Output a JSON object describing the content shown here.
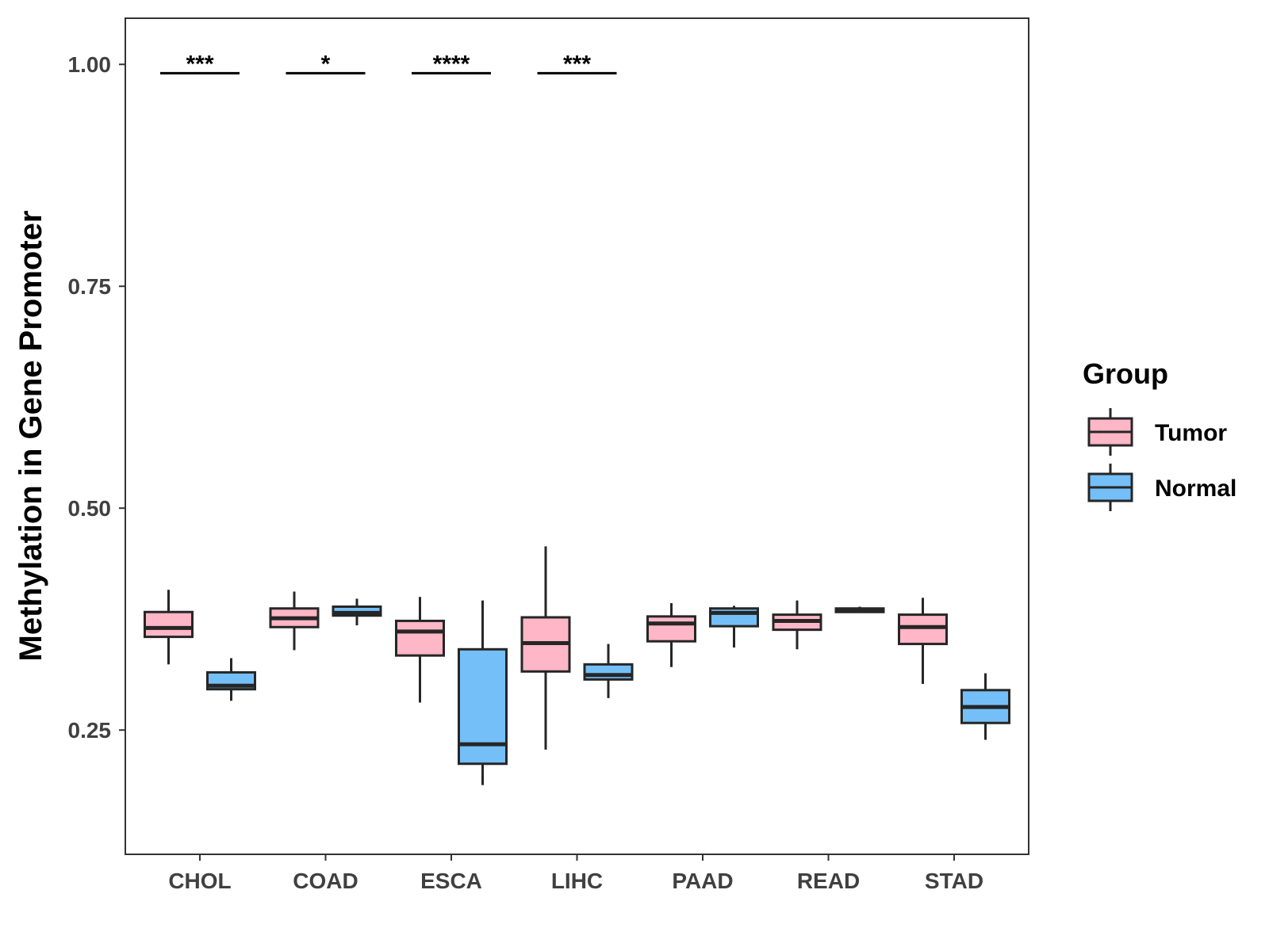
{
  "chart_data": {
    "type": "boxplot",
    "title": "",
    "xlabel": "",
    "ylabel": "Methylation in Gene Promoter",
    "ylim": [
      0.11,
      1.052
    ],
    "yticks": [
      0.25,
      0.5,
      0.75,
      1.0
    ],
    "ytick_labels": [
      "0.25",
      "0.50",
      "0.75",
      "1.00"
    ],
    "categories": [
      "CHOL",
      "COAD",
      "ESCA",
      "LIHC",
      "PAAD",
      "READ",
      "STAD"
    ],
    "legend": {
      "title": "Group",
      "position": "right",
      "entries": [
        {
          "name": "Tumor",
          "color": "#FFB6C6"
        },
        {
          "name": "Normal",
          "color": "#74BFF8"
        }
      ]
    },
    "series": [
      {
        "name": "Tumor",
        "color": "#FFB6C6",
        "boxes": [
          {
            "category": "CHOL",
            "whisker_low": 0.324,
            "q1": 0.355,
            "median": 0.365,
            "q3": 0.383,
            "whisker_high": 0.408
          },
          {
            "category": "COAD",
            "whisker_low": 0.34,
            "q1": 0.366,
            "median": 0.376,
            "q3": 0.387,
            "whisker_high": 0.406
          },
          {
            "category": "ESCA",
            "whisker_low": 0.281,
            "q1": 0.334,
            "median": 0.361,
            "q3": 0.373,
            "whisker_high": 0.4
          },
          {
            "category": "LIHC",
            "whisker_low": 0.228,
            "q1": 0.316,
            "median": 0.348,
            "q3": 0.377,
            "whisker_high": 0.457
          },
          {
            "category": "PAAD",
            "whisker_low": 0.321,
            "q1": 0.35,
            "median": 0.37,
            "q3": 0.378,
            "whisker_high": 0.393
          },
          {
            "category": "READ",
            "whisker_low": 0.341,
            "q1": 0.363,
            "median": 0.373,
            "q3": 0.38,
            "whisker_high": 0.396
          },
          {
            "category": "STAD",
            "whisker_low": 0.302,
            "q1": 0.347,
            "median": 0.366,
            "q3": 0.38,
            "whisker_high": 0.399
          }
        ]
      },
      {
        "name": "Normal",
        "color": "#74BFF8",
        "boxes": [
          {
            "category": "CHOL",
            "whisker_low": 0.283,
            "q1": 0.296,
            "median": 0.3,
            "q3": 0.315,
            "whisker_high": 0.331
          },
          {
            "category": "COAD",
            "whisker_low": 0.368,
            "q1": 0.379,
            "median": 0.382,
            "q3": 0.389,
            "whisker_high": 0.398
          },
          {
            "category": "ESCA",
            "whisker_low": 0.188,
            "q1": 0.212,
            "median": 0.234,
            "q3": 0.341,
            "whisker_high": 0.396
          },
          {
            "category": "LIHC",
            "whisker_low": 0.286,
            "q1": 0.307,
            "median": 0.312,
            "q3": 0.324,
            "whisker_high": 0.347
          },
          {
            "category": "PAAD",
            "whisker_low": 0.343,
            "q1": 0.367,
            "median": 0.382,
            "q3": 0.387,
            "whisker_high": 0.39
          },
          {
            "category": "READ",
            "whisker_low": 0.382,
            "q1": 0.383,
            "median": 0.385,
            "q3": 0.387,
            "whisker_high": 0.389
          },
          {
            "category": "STAD",
            "whisker_low": 0.239,
            "q1": 0.258,
            "median": 0.276,
            "q3": 0.295,
            "whisker_high": 0.314
          }
        ]
      }
    ],
    "annotations": [
      {
        "category": "CHOL",
        "label": "***",
        "y": 0.99
      },
      {
        "category": "COAD",
        "label": "*",
        "y": 0.99
      },
      {
        "category": "ESCA",
        "label": "****",
        "y": 0.99
      },
      {
        "category": "LIHC",
        "label": "***",
        "y": 0.99
      }
    ]
  }
}
